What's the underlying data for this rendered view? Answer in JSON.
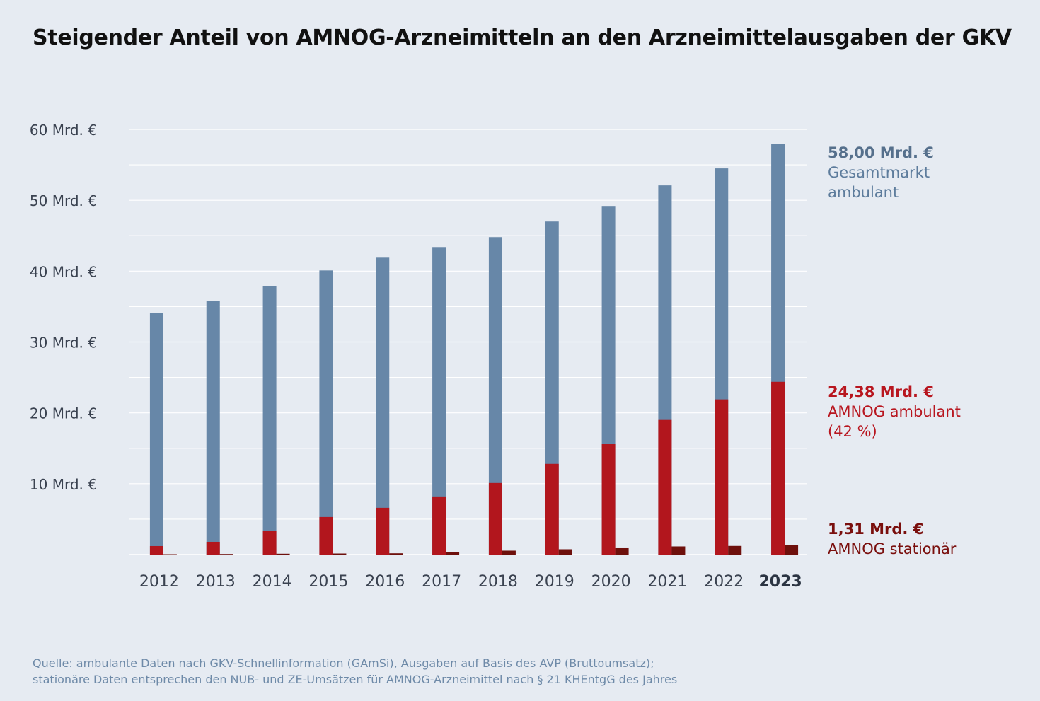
{
  "title": "Steigender Anteil von AMNOG-Arzneimitteln an den Arzneimittelausgaben der GKV",
  "colors": {
    "background": "#e6ebf2",
    "gesamtmarkt": "#6787a8",
    "amnog_ambulant": "#b2161d",
    "amnog_stationaer": "#6e100c",
    "grid": "#ffffff",
    "axis_text": "#3a4250"
  },
  "annotations": {
    "gesamt": {
      "value": "58,00 Mrd. €",
      "label_line1": "Gesamtmarkt",
      "label_line2": "ambulant"
    },
    "ambulant": {
      "value": "24,38 Mrd. €",
      "label_line1": "AMNOG ambulant",
      "label_line2": "(42 %)"
    },
    "stationaer": {
      "value": "1,31 Mrd. €",
      "label_line1": "AMNOG stationär"
    }
  },
  "source": {
    "line1": "Quelle: ambulante Daten nach GKV-Schnellinformation (GAmSi), Ausgaben auf Basis des AVP (Bruttoumsatz);",
    "line2": "stationäre Daten entsprechen den NUB- und ZE-Umsätzen für AMNOG-Arzneimittel nach § 21 KHEntgG des Jahres"
  },
  "chart_data": {
    "type": "bar",
    "title": "Steigender Anteil von AMNOG-Arzneimitteln an den Arzneimittelausgaben der GKV",
    "xlabel": "",
    "ylabel": "",
    "ylim": [
      0,
      60
    ],
    "yticks": [
      10,
      20,
      30,
      40,
      50,
      60
    ],
    "ytick_labels": [
      "10 Mrd. €",
      "20 Mrd. €",
      "30 Mrd. €",
      "40 Mrd. €",
      "50 Mrd. €",
      "60 Mrd. €"
    ],
    "grid": true,
    "highlight_category": "2023",
    "categories": [
      "2012",
      "2013",
      "2014",
      "2015",
      "2016",
      "2017",
      "2018",
      "2019",
      "2020",
      "2021",
      "2022",
      "2023"
    ],
    "series": [
      {
        "name": "Gesamtmarkt ambulant",
        "values": [
          34.1,
          35.8,
          37.9,
          40.1,
          41.9,
          43.4,
          44.8,
          47.0,
          49.2,
          52.1,
          54.5,
          58.0
        ]
      },
      {
        "name": "AMNOG ambulant",
        "values": [
          1.2,
          1.8,
          3.3,
          5.3,
          6.6,
          8.2,
          10.1,
          12.8,
          15.6,
          19.0,
          21.9,
          24.38
        ]
      },
      {
        "name": "AMNOG stationär",
        "values": [
          0.05,
          0.08,
          0.12,
          0.15,
          0.18,
          0.3,
          0.55,
          0.75,
          1.0,
          1.15,
          1.22,
          1.31
        ]
      }
    ]
  }
}
